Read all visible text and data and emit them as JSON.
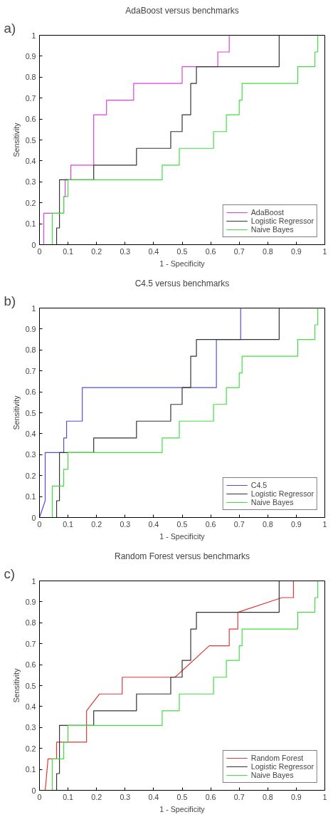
{
  "chart_data": [
    {
      "type": "line",
      "title": "AdaBoost versus benchmarks",
      "xlabel": "1 - Specificity",
      "ylabel": "Sensitivity",
      "annotations": [
        "a)"
      ],
      "xlim": [
        0,
        1
      ],
      "ylim": [
        0,
        1
      ],
      "xticks": [
        0,
        0.1,
        0.2,
        0.3,
        0.4,
        0.5,
        0.6,
        0.7,
        0.8,
        0.9,
        1
      ],
      "yticks": [
        0,
        0.1,
        0.2,
        0.3,
        0.4,
        0.5,
        0.6,
        0.7,
        0.8,
        0.9,
        1
      ],
      "grid": false,
      "legend": "bottom right",
      "series": [
        {
          "name": "AdaBoost",
          "color": "#e040e0",
          "x": [
            0.015,
            0.015,
            0.085,
            0.085,
            0.09,
            0.09,
            0.11,
            0.11,
            0.19,
            0.19,
            0.235,
            0.235,
            0.33,
            0.33,
            0.5,
            0.5,
            0.625,
            0.625,
            0.665,
            0.665
          ],
          "values": [
            0,
            0.15,
            0.15,
            0.23,
            0.23,
            0.31,
            0.31,
            0.38,
            0.38,
            0.62,
            0.62,
            0.69,
            0.69,
            0.77,
            0.77,
            0.85,
            0.85,
            0.92,
            0.92,
            1
          ]
        },
        {
          "name": "Logistic Regressor",
          "color": "#333333",
          "x": [
            0.06,
            0.06,
            0.07,
            0.07,
            0.19,
            0.19,
            0.34,
            0.34,
            0.46,
            0.46,
            0.5,
            0.5,
            0.53,
            0.53,
            0.55,
            0.55,
            0.84,
            0.84
          ],
          "values": [
            0,
            0.08,
            0.08,
            0.31,
            0.31,
            0.38,
            0.38,
            0.46,
            0.46,
            0.54,
            0.54,
            0.62,
            0.62,
            0.77,
            0.77,
            0.85,
            0.85,
            1
          ]
        },
        {
          "name": "Naive Bayes",
          "color": "#40e040",
          "x": [
            0.045,
            0.045,
            0.085,
            0.085,
            0.1,
            0.1,
            0.43,
            0.43,
            0.49,
            0.49,
            0.61,
            0.61,
            0.655,
            0.655,
            0.7,
            0.7,
            0.71,
            0.71,
            0.905,
            0.905,
            0.965,
            0.965,
            0.975,
            0.975
          ],
          "values": [
            0,
            0.15,
            0.15,
            0.23,
            0.23,
            0.31,
            0.31,
            0.38,
            0.38,
            0.46,
            0.46,
            0.54,
            0.54,
            0.62,
            0.62,
            0.69,
            0.69,
            0.77,
            0.77,
            0.85,
            0.85,
            0.92,
            0.92,
            1
          ]
        }
      ]
    },
    {
      "type": "line",
      "title": "C4.5 versus benchmarks",
      "xlabel": "1 - Specificity",
      "ylabel": "Sensitivity",
      "annotations": [
        "b)"
      ],
      "xlim": [
        0,
        1
      ],
      "ylim": [
        0,
        1
      ],
      "xticks": [
        0,
        0.1,
        0.2,
        0.3,
        0.4,
        0.5,
        0.6,
        0.7,
        0.8,
        0.9,
        1
      ],
      "yticks": [
        0,
        0.1,
        0.2,
        0.3,
        0.4,
        0.5,
        0.6,
        0.7,
        0.8,
        0.9,
        1
      ],
      "grid": false,
      "legend": "bottom right",
      "series": [
        {
          "name": "C4.5",
          "color": "#5050e0",
          "x": [
            0,
            0.02,
            0.02,
            0.085,
            0.085,
            0.095,
            0.095,
            0.15,
            0.15,
            0.62,
            0.62,
            0.705,
            0.705
          ],
          "values": [
            0,
            0.08,
            0.31,
            0.31,
            0.38,
            0.38,
            0.46,
            0.46,
            0.62,
            0.62,
            0.85,
            0.85,
            1
          ]
        },
        {
          "name": "Logistic Regressor",
          "color": "#333333",
          "x": [
            0.06,
            0.06,
            0.07,
            0.07,
            0.19,
            0.19,
            0.34,
            0.34,
            0.46,
            0.46,
            0.5,
            0.5,
            0.53,
            0.53,
            0.55,
            0.55,
            0.84,
            0.84
          ],
          "values": [
            0,
            0.08,
            0.08,
            0.31,
            0.31,
            0.38,
            0.38,
            0.46,
            0.46,
            0.54,
            0.54,
            0.62,
            0.62,
            0.77,
            0.77,
            0.85,
            0.85,
            1
          ]
        },
        {
          "name": "Naive Bayes",
          "color": "#40e040",
          "x": [
            0.045,
            0.045,
            0.085,
            0.085,
            0.1,
            0.1,
            0.43,
            0.43,
            0.49,
            0.49,
            0.61,
            0.61,
            0.655,
            0.655,
            0.7,
            0.7,
            0.71,
            0.71,
            0.905,
            0.905,
            0.965,
            0.965,
            0.975,
            0.975
          ],
          "values": [
            0,
            0.15,
            0.15,
            0.23,
            0.23,
            0.31,
            0.31,
            0.38,
            0.38,
            0.46,
            0.46,
            0.54,
            0.54,
            0.62,
            0.62,
            0.69,
            0.69,
            0.77,
            0.77,
            0.85,
            0.85,
            0.92,
            0.92,
            1
          ]
        }
      ]
    },
    {
      "type": "line",
      "title": "Random Forest versus benchmarks",
      "xlabel": "1 - Specificity",
      "ylabel": "Sensitivity",
      "annotations": [
        "c)"
      ],
      "xlim": [
        0,
        1
      ],
      "ylim": [
        0,
        1
      ],
      "xticks": [
        0,
        0.1,
        0.2,
        0.3,
        0.4,
        0.5,
        0.6,
        0.7,
        0.8,
        0.9,
        1
      ],
      "yticks": [
        0,
        0.1,
        0.2,
        0.3,
        0.4,
        0.5,
        0.6,
        0.7,
        0.8,
        0.9,
        1
      ],
      "grid": false,
      "legend": "bottom right",
      "series": [
        {
          "name": "Random Forest",
          "color": "#e03838",
          "x": [
            0.02,
            0.03,
            0.06,
            0.06,
            0.165,
            0.165,
            0.21,
            0.29,
            0.29,
            0.475,
            0.595,
            0.665,
            0.665,
            0.695,
            0.695,
            0.85,
            0.89,
            0.89
          ],
          "values": [
            0,
            0.15,
            0.15,
            0.23,
            0.23,
            0.38,
            0.46,
            0.46,
            0.54,
            0.54,
            0.69,
            0.69,
            0.77,
            0.77,
            0.85,
            0.92,
            0.92,
            1
          ]
        },
        {
          "name": "Logistic Regressor",
          "color": "#333333",
          "x": [
            0.06,
            0.06,
            0.07,
            0.07,
            0.19,
            0.19,
            0.34,
            0.34,
            0.46,
            0.46,
            0.5,
            0.5,
            0.53,
            0.53,
            0.55,
            0.55,
            0.84,
            0.84
          ],
          "values": [
            0,
            0.08,
            0.08,
            0.31,
            0.31,
            0.38,
            0.38,
            0.46,
            0.46,
            0.54,
            0.54,
            0.62,
            0.62,
            0.77,
            0.77,
            0.85,
            0.85,
            1
          ]
        },
        {
          "name": "Naive Bayes",
          "color": "#40e040",
          "x": [
            0.045,
            0.045,
            0.085,
            0.085,
            0.1,
            0.1,
            0.43,
            0.43,
            0.49,
            0.49,
            0.61,
            0.61,
            0.655,
            0.655,
            0.7,
            0.7,
            0.71,
            0.71,
            0.905,
            0.905,
            0.965,
            0.965,
            0.975,
            0.975
          ],
          "values": [
            0,
            0.15,
            0.15,
            0.23,
            0.23,
            0.31,
            0.31,
            0.38,
            0.38,
            0.46,
            0.46,
            0.54,
            0.54,
            0.62,
            0.62,
            0.69,
            0.69,
            0.77,
            0.77,
            0.85,
            0.85,
            0.92,
            0.92,
            1
          ]
        }
      ]
    }
  ]
}
